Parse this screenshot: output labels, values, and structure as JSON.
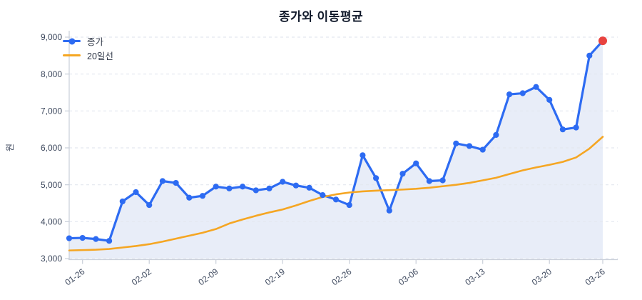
{
  "chart_data": {
    "type": "line",
    "title": "종가와 이동평균",
    "ylabel": "원",
    "ylim": [
      3000,
      9000
    ],
    "grid": "dashed-horizontal",
    "legend_position": "top-left",
    "x_count": 41,
    "x_ticks": [
      {
        "index": 1,
        "label": "01-26"
      },
      {
        "index": 6,
        "label": "02-02"
      },
      {
        "index": 11,
        "label": "02-09"
      },
      {
        "index": 16,
        "label": "02-19"
      },
      {
        "index": 21,
        "label": "02-26"
      },
      {
        "index": 26,
        "label": "03-06"
      },
      {
        "index": 31,
        "label": "03-13"
      },
      {
        "index": 36,
        "label": "03-20"
      },
      {
        "index": 40,
        "label": "03-26"
      }
    ],
    "y_ticks": [
      {
        "value": 3000,
        "label": "3,000"
      },
      {
        "value": 4000,
        "label": "4,000"
      },
      {
        "value": 5000,
        "label": "5,000"
      },
      {
        "value": 6000,
        "label": "6,000"
      },
      {
        "value": 7000,
        "label": "7,000"
      },
      {
        "value": 8000,
        "label": "8,000"
      },
      {
        "value": 9000,
        "label": "9,000"
      }
    ],
    "series": [
      {
        "name": "종가",
        "style": "line+markers",
        "color": "#2d6bf2",
        "area_fill": "#e8edf8",
        "last_point_color": "#e8433f",
        "values": [
          3550,
          3560,
          3530,
          3480,
          4550,
          4800,
          4450,
          5100,
          5050,
          4650,
          4700,
          4950,
          4900,
          4950,
          4850,
          4900,
          5080,
          4980,
          4920,
          4720,
          4600,
          4450,
          5800,
          5180,
          4300,
          5300,
          5580,
          5100,
          5120,
          6120,
          6050,
          5950,
          6350,
          7450,
          7480,
          7650,
          7300,
          6500,
          6550,
          8500,
          8900
        ]
      },
      {
        "name": "20일선",
        "style": "line",
        "color": "#f5a623",
        "values": [
          3220,
          3230,
          3240,
          3260,
          3300,
          3340,
          3390,
          3460,
          3540,
          3620,
          3700,
          3800,
          3950,
          4060,
          4160,
          4250,
          4330,
          4440,
          4560,
          4670,
          4740,
          4790,
          4820,
          4840,
          4855,
          4870,
          4890,
          4920,
          4960,
          5000,
          5050,
          5120,
          5190,
          5290,
          5390,
          5470,
          5540,
          5620,
          5740,
          5980,
          6300
        ]
      }
    ],
    "colors": {
      "grid": "#e3e7ef",
      "axis": "#c9cfd9",
      "tick_label": "#3f4a5f",
      "title": "#111a2b",
      "background": "#ffffff"
    }
  }
}
